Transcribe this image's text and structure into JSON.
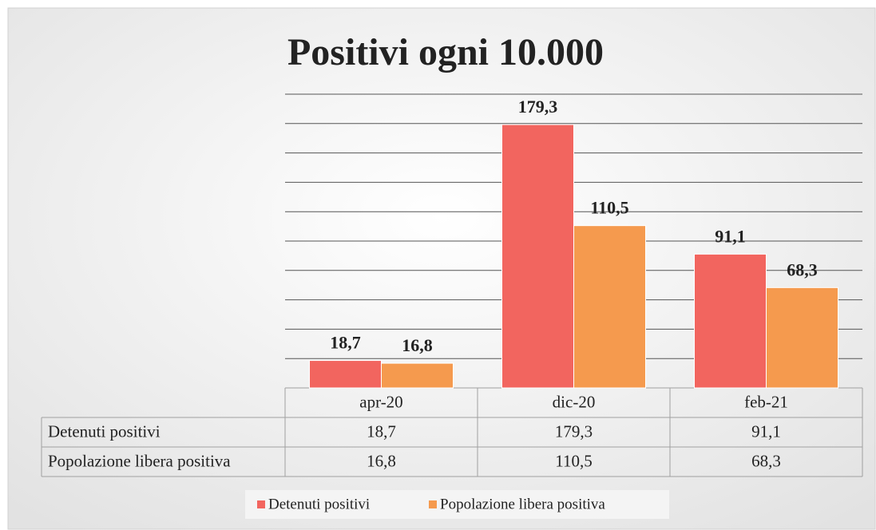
{
  "chart_data": {
    "type": "bar",
    "title": "Positivi ogni 10.000",
    "categories": [
      "apr-20",
      "dic-20",
      "feb-21"
    ],
    "series": [
      {
        "name": "Detenuti positivi",
        "color": "#f2655f",
        "values": [
          18.7,
          179.3,
          91.1
        ],
        "value_labels": [
          "18,7",
          "179,3",
          "91,1"
        ]
      },
      {
        "name": "Popolazione libera positiva",
        "color": "#f59a4e",
        "values": [
          16.8,
          110.5,
          68.3
        ],
        "value_labels": [
          "16,8",
          "110,5",
          "68,3"
        ]
      }
    ],
    "ylim": [
      0,
      200
    ],
    "yticks": [
      0,
      20,
      40,
      60,
      80,
      100,
      120,
      140,
      160,
      180,
      200
    ],
    "grid": true,
    "legend": "bottom"
  }
}
